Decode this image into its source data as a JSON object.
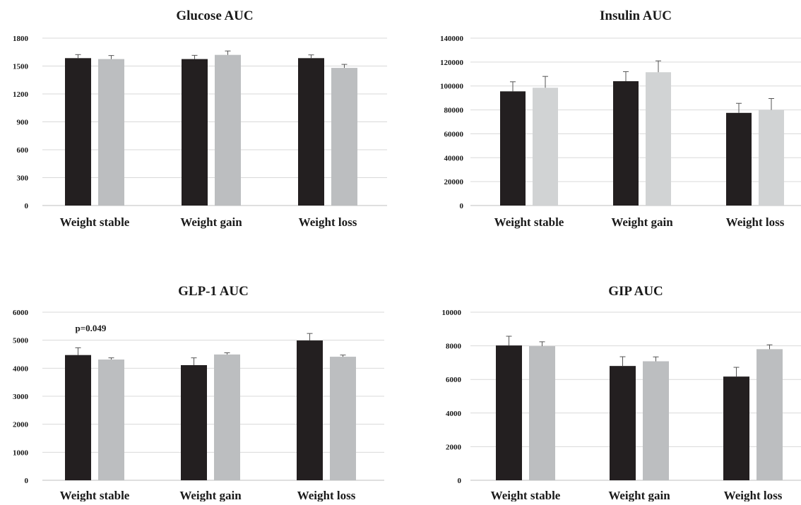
{
  "chart_data": [
    {
      "type": "bar",
      "title": "Glucose AUC",
      "categories": [
        "Weight stable",
        "Weight gain",
        "Weight loss"
      ],
      "series": [
        {
          "values": [
            1585,
            1575,
            1585
          ],
          "error": [
            38,
            40,
            35
          ]
        },
        {
          "values": [
            1575,
            1620,
            1480
          ],
          "error": [
            38,
            42,
            38
          ]
        }
      ],
      "ylim": [
        0,
        1800
      ],
      "yticks": [
        "0",
        "300",
        "600",
        "900",
        "1200",
        "1500",
        "1800"
      ],
      "grid": true,
      "colors": [
        "#231f20",
        "#bcbec0"
      ],
      "annotations": []
    },
    {
      "type": "bar",
      "title": "Insulin AUC",
      "categories": [
        "Weight stable",
        "Weight gain",
        "Weight loss"
      ],
      "series": [
        {
          "values": [
            95500,
            104000,
            77500
          ],
          "error": [
            8000,
            8000,
            8000
          ]
        },
        {
          "values": [
            98500,
            111500,
            80000
          ],
          "error": [
            9500,
            9500,
            9500
          ]
        }
      ],
      "ylim": [
        0,
        140000
      ],
      "yticks": [
        "0",
        "20000",
        "40000",
        "60000",
        "80000",
        "100000",
        "120000",
        "140000"
      ],
      "grid": true,
      "colors": [
        "#231f20",
        "#d1d3d4"
      ],
      "annotations": []
    },
    {
      "type": "bar",
      "title": "GLP-1 AUC",
      "categories": [
        "Weight stable",
        "Weight gain",
        "Weight loss"
      ],
      "series": [
        {
          "values": [
            4470,
            4110,
            4990
          ],
          "error": [
            260,
            260,
            250
          ]
        },
        {
          "values": [
            4310,
            4490,
            4410
          ],
          "error": [
            60,
            60,
            60
          ]
        }
      ],
      "ylim": [
        0,
        6000
      ],
      "yticks": [
        "0",
        "1000",
        "2000",
        "3000",
        "4000",
        "5000",
        "6000"
      ],
      "grid": true,
      "colors": [
        "#231f20",
        "#bcbec0"
      ],
      "annotations": [
        {
          "text": "p=0.049",
          "category": "Weight stable"
        }
      ]
    },
    {
      "type": "bar",
      "title": "GIP AUC",
      "categories": [
        "Weight stable",
        "Weight gain",
        "Weight loss"
      ],
      "series": [
        {
          "values": [
            8020,
            6800,
            6170
          ],
          "error": [
            550,
            550,
            550
          ]
        },
        {
          "values": [
            7980,
            7080,
            7800
          ],
          "error": [
            260,
            260,
            260
          ]
        }
      ],
      "ylim": [
        0,
        10000
      ],
      "yticks": [
        "0",
        "2000",
        "4000",
        "6000",
        "8000",
        "10000"
      ],
      "grid": true,
      "colors": [
        "#231f20",
        "#bcbec0"
      ],
      "annotations": []
    }
  ]
}
